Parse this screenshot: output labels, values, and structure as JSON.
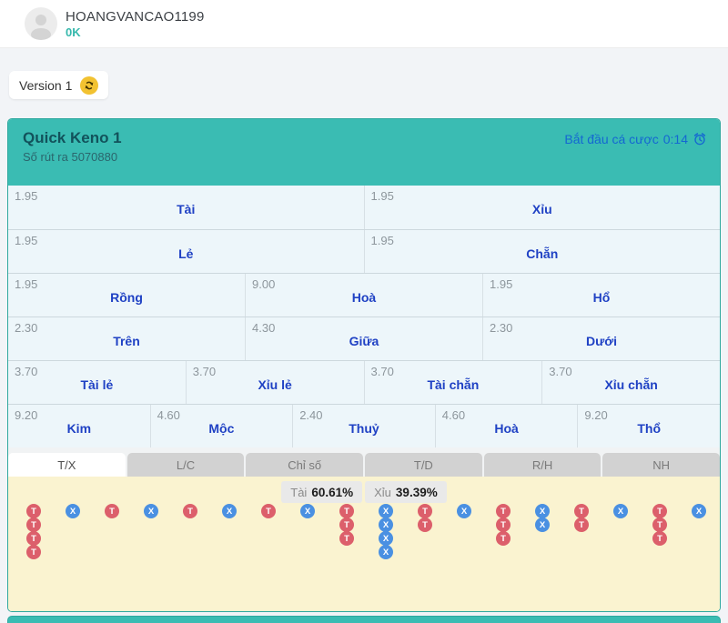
{
  "header": {
    "username": "HOANGVANCAO1199",
    "balance": "0K"
  },
  "toolbar": {
    "version_label": "Version 1"
  },
  "panel": {
    "title": "Quick Keno 1",
    "draw_label": "Số rút ra 5070880",
    "countdown_label": "Bắt đầu cá cược",
    "countdown_time": "0:14"
  },
  "bet_grid": {
    "rows": [
      {
        "cells": [
          {
            "odds": "1.95",
            "label": "Tài"
          },
          {
            "odds": "1.95",
            "label": "Xỉu"
          }
        ]
      },
      {
        "cells": [
          {
            "odds": "1.95",
            "label": "Lẻ"
          },
          {
            "odds": "1.95",
            "label": "Chẵn"
          }
        ]
      },
      {
        "cells": [
          {
            "odds": "1.95",
            "label": "Rồng"
          },
          {
            "odds": "9.00",
            "label": "Hoà"
          },
          {
            "odds": "1.95",
            "label": "Hổ"
          }
        ]
      },
      {
        "cells": [
          {
            "odds": "2.30",
            "label": "Trên"
          },
          {
            "odds": "4.30",
            "label": "Giữa"
          },
          {
            "odds": "2.30",
            "label": "Dưới"
          }
        ]
      },
      {
        "cells": [
          {
            "odds": "3.70",
            "label": "Tài lẻ"
          },
          {
            "odds": "3.70",
            "label": "Xỉu lẻ"
          },
          {
            "odds": "3.70",
            "label": "Tài chẵn"
          },
          {
            "odds": "3.70",
            "label": "Xỉu chẵn"
          }
        ]
      },
      {
        "cells": [
          {
            "odds": "9.20",
            "label": "Kim"
          },
          {
            "odds": "4.60",
            "label": "Mộc"
          },
          {
            "odds": "2.40",
            "label": "Thuỷ"
          },
          {
            "odds": "4.60",
            "label": "Hoà"
          },
          {
            "odds": "9.20",
            "label": "Thổ"
          }
        ]
      }
    ]
  },
  "tabs": [
    {
      "label": "T/X",
      "active": true
    },
    {
      "label": "L/C",
      "active": false
    },
    {
      "label": "Chỉ số",
      "active": false
    },
    {
      "label": "T/D",
      "active": false
    },
    {
      "label": "R/H",
      "active": false
    },
    {
      "label": "NH",
      "active": false
    }
  ],
  "stats": [
    {
      "label": "Tài",
      "value": "60.61%"
    },
    {
      "label": "Xỉu",
      "value": "39.39%"
    }
  ],
  "road": {
    "tai_symbol": "T",
    "xiu_symbol": "X",
    "columns": [
      "TTTT",
      "X",
      "T",
      "X",
      "T",
      "X",
      "T",
      "X",
      "TTT",
      "XXXX",
      "TT",
      "X",
      "TTT",
      "XX",
      "TT",
      "X",
      "TTT",
      "X"
    ]
  },
  "colors": {
    "teal_header": "#3abcb3",
    "panel_border": "#2fa89e",
    "bet_label_blue": "#1f41c4",
    "countdown_blue": "#1467d2",
    "balance_teal": "#35b8ac",
    "road_bg_yellow": "#faf3d0",
    "tai_red": "#dc5f6b",
    "xiu_blue": "#4a90e2",
    "refresh_yellow": "#f2c231"
  }
}
